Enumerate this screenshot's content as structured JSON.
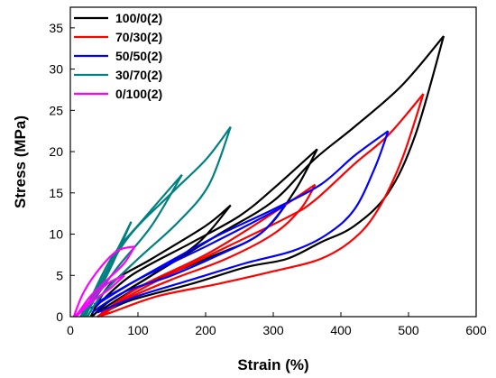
{
  "chart_data": {
    "type": "line",
    "title": "",
    "xlabel": "Strain (%)",
    "ylabel": "Stress (MPa)",
    "xlim": [
      0,
      600
    ],
    "ylim": [
      0,
      37.5
    ],
    "xticks": [
      0,
      100,
      200,
      300,
      400,
      500,
      600
    ],
    "yticks": [
      0,
      5,
      10,
      15,
      20,
      25,
      30,
      35
    ],
    "grid": false,
    "legend_position": "top-left",
    "series": [
      {
        "name": "100/0(2)",
        "color": "#000000",
        "loops": [
          {
            "loading": [
              [
                30,
                0
              ],
              [
                60,
                4
              ],
              [
                120,
                7
              ],
              [
                200,
                11
              ],
              [
                237,
                13.5
              ]
            ],
            "unloading": [
              [
                237,
                13.5
              ],
              [
                190,
                9
              ],
              [
                120,
                5
              ],
              [
                60,
                2
              ],
              [
                32,
                0
              ]
            ]
          },
          {
            "loading": [
              [
                35,
                1
              ],
              [
                90,
                5
              ],
              [
                180,
                9
              ],
              [
                250,
                12.2
              ],
              [
                300,
                15.5
              ],
              [
                365,
                20.3
              ]
            ],
            "unloading": [
              [
                365,
                20.3
              ],
              [
                330,
                15
              ],
              [
                280,
                10
              ],
              [
                200,
                7
              ],
              [
                100,
                3.5
              ],
              [
                40,
                0.5
              ]
            ]
          },
          {
            "loading": [
              [
                40,
                1
              ],
              [
                120,
                5
              ],
              [
                220,
                10
              ],
              [
                300,
                14
              ],
              [
                360,
                19
              ],
              [
                420,
                23
              ],
              [
                490,
                28
              ],
              [
                552,
                34
              ]
            ],
            "unloading": [
              [
                552,
                34
              ],
              [
                510,
                22
              ],
              [
                470,
                15
              ],
              [
                420,
                11
              ],
              [
                370,
                9
              ],
              [
                320,
                7
              ],
              [
                260,
                6
              ],
              [
                180,
                4
              ],
              [
                90,
                2
              ],
              [
                45,
                0.3
              ]
            ]
          }
        ]
      },
      {
        "name": "70/30(2)",
        "color": "#ff0000",
        "loops": [
          {
            "loading": [
              [
                40,
                0
              ],
              [
                100,
                3.5
              ],
              [
                200,
                7.5
              ],
              [
                280,
                11.5
              ],
              [
                362,
                16
              ]
            ],
            "unloading": [
              [
                362,
                16
              ],
              [
                340,
                13
              ],
              [
                300,
                10
              ],
              [
                230,
                7
              ],
              [
                150,
                4.5
              ],
              [
                80,
                2
              ],
              [
                45,
                0
              ]
            ]
          },
          {
            "loading": [
              [
                45,
                0.5
              ],
              [
                120,
                4
              ],
              [
                220,
                8
              ],
              [
                320,
                12
              ],
              [
                360,
                14
              ],
              [
                420,
                18.5
              ],
              [
                470,
                22
              ],
              [
                522,
                27
              ]
            ],
            "unloading": [
              [
                522,
                27
              ],
              [
                490,
                19
              ],
              [
                455,
                13
              ],
              [
                420,
                9.5
              ],
              [
                370,
                7
              ],
              [
                300,
                5.5
              ],
              [
                220,
                4
              ],
              [
                130,
                2.5
              ],
              [
                60,
                0.5
              ],
              [
                40,
                0
              ]
            ]
          }
        ]
      },
      {
        "name": "50/50(2)",
        "color": "#0000ff",
        "loops": [
          {
            "loading": [
              [
                30,
                1
              ],
              [
                100,
                4.5
              ],
              [
                200,
                8.5
              ],
              [
                260,
                11
              ],
              [
                318,
                13.5
              ]
            ],
            "unloading": [
              [
                318,
                13.5
              ],
              [
                280,
                10
              ],
              [
                220,
                7.5
              ],
              [
                150,
                5
              ],
              [
                80,
                3
              ],
              [
                32,
                0.5
              ]
            ]
          },
          {
            "loading": [
              [
                35,
                1.5
              ],
              [
                110,
                5
              ],
              [
                210,
                9.5
              ],
              [
                300,
                13
              ],
              [
                370,
                16
              ],
              [
                420,
                19.5
              ],
              [
                470,
                22.5
              ]
            ],
            "unloading": [
              [
                470,
                22.5
              ],
              [
                450,
                18
              ],
              [
                420,
                13
              ],
              [
                380,
                10
              ],
              [
                330,
                8
              ],
              [
                260,
                6.5
              ],
              [
                180,
                4.5
              ],
              [
                100,
                2.5
              ],
              [
                40,
                0.5
              ]
            ]
          }
        ]
      },
      {
        "name": "30/70(2)",
        "color": "#008080",
        "loops": [
          {
            "loading": [
              [
                15,
                0
              ],
              [
                50,
                5
              ],
              [
                90,
                11.5
              ]
            ],
            "unloading": [
              [
                90,
                11.5
              ],
              [
                60,
                6
              ],
              [
                35,
                2
              ],
              [
                20,
                0
              ]
            ]
          },
          {
            "loading": [
              [
                18,
                0
              ],
              [
                60,
                7
              ],
              [
                110,
                12
              ],
              [
                165,
                17.2
              ]
            ],
            "unloading": [
              [
                165,
                17.2
              ],
              [
                120,
                11
              ],
              [
                70,
                6
              ],
              [
                35,
                2
              ],
              [
                22,
                0
              ]
            ]
          },
          {
            "loading": [
              [
                20,
                0
              ],
              [
                80,
                9
              ],
              [
                150,
                15
              ],
              [
                200,
                19
              ],
              [
                237,
                23
              ]
            ],
            "unloading": [
              [
                237,
                23
              ],
              [
                205,
                16
              ],
              [
                160,
                11.5
              ],
              [
                100,
                7
              ],
              [
                50,
                3
              ],
              [
                25,
                0
              ]
            ]
          }
        ]
      },
      {
        "name": "0/100(2)",
        "color": "#ff00ff",
        "loops": [
          {
            "loading": [
              [
                5,
                0
              ],
              [
                20,
                3
              ],
              [
                45,
                6
              ],
              [
                70,
                8
              ],
              [
                95,
                8.5
              ]
            ],
            "unloading": [
              [
                95,
                8.5
              ],
              [
                80,
                6.5
              ],
              [
                55,
                4.5
              ],
              [
                30,
                2.5
              ],
              [
                12,
                0.5
              ],
              [
                5,
                0
              ]
            ]
          },
          {
            "loading": [
              [
                8,
                0
              ],
              [
                30,
                2
              ],
              [
                55,
                4
              ],
              [
                80,
                5
              ]
            ],
            "unloading": [
              [
                80,
                5
              ],
              [
                60,
                3.5
              ],
              [
                35,
                2
              ],
              [
                15,
                0.5
              ],
              [
                8,
                0
              ]
            ]
          }
        ]
      }
    ]
  }
}
